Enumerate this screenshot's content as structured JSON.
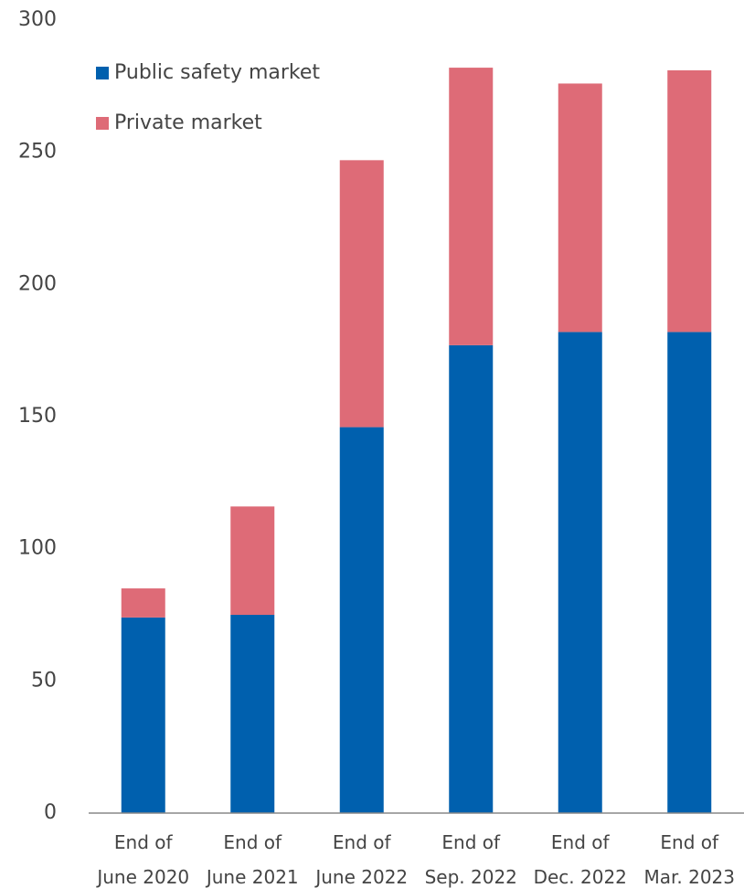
{
  "chart_data": {
    "type": "stacked_bar",
    "categories": [
      "End of\nJune 2020",
      "End of\nJune 2021",
      "End of\nJune 2022",
      "End of\nSep. 2022",
      "End of\nDec. 2022",
      "End of\nMar. 2023"
    ],
    "series": [
      {
        "name": "Public safety market",
        "color": "#0060ae",
        "values": [
          74,
          75,
          146,
          177,
          182,
          182
        ]
      },
      {
        "name": "Private market",
        "color": "#de6b77",
        "values": [
          11,
          41,
          101,
          105,
          94,
          99
        ]
      }
    ],
    "ylim": [
      0,
      300
    ],
    "yticks": [
      0,
      50,
      100,
      150,
      200,
      250,
      300
    ],
    "grid": false,
    "legend": "top-left"
  }
}
